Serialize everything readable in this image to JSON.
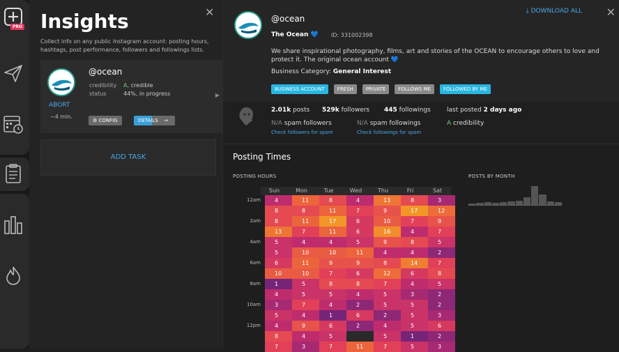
{
  "sidebar": {
    "pro_badge": "PRO",
    "icons": [
      "add-insights-icon",
      "send-icon",
      "schedule-calendar-icon",
      "tasks-clipboard-icon",
      "analytics-bars-icon",
      "trending-flame-icon"
    ]
  },
  "insights": {
    "title": "Insights",
    "description": "Collect info on any public Instagram account: posting hours, hashtags, post performance, followers and followings lists.",
    "task": {
      "username": "@ocean",
      "credibility_label": "credibility",
      "credibility_grade": "A,",
      "credibility_value": "credible",
      "status_label": "status",
      "status_value": "44%, in progress",
      "progress": 0.44,
      "abort": "ABORT",
      "eta": "~4 min.",
      "config_label": "CONFIG",
      "details_label": "DETAILS"
    },
    "add_task": "ADD TASK"
  },
  "profile": {
    "handle": "@ocean",
    "download_all": "DOWNLOAD ALL",
    "full_name": "The Ocean 💙",
    "id": "ID: 331002398",
    "bio": "We share inspirational photography, films, art and stories of the OCEAN to encourage others to love and protect it. The original ocean account 💙",
    "category_label": "Business Category:",
    "category_value": "General Interest",
    "tags": [
      {
        "label": "BUSINESS ACCOUNT",
        "color": "#29b6e0"
      },
      {
        "label": "FRESH",
        "color": "#8a8a8a"
      },
      {
        "label": "PRIVATE",
        "color": "#8a8a8a"
      },
      {
        "label": "FOLLOWS ME",
        "color": "#8a8a8a"
      },
      {
        "label": "FOLLOWED BY ME",
        "color": "#29b6e0"
      }
    ]
  },
  "stats": {
    "posts_value": "2.01k",
    "posts_label": "posts",
    "followers_value": "529k",
    "followers_label": "followers",
    "followings_value": "445",
    "followings_label": "followings",
    "last_posted_label": "last posted",
    "last_posted_value": "2 days ago",
    "spam_followers_value": "N/A",
    "spam_followers_label": "spam followers",
    "spam_followings_value": "N/A",
    "spam_followings_label": "spam followings",
    "credibility_grade": "A",
    "credibility_label": "credibility",
    "check_followers": "Check followers for spam",
    "check_followings": "Check followings for spam"
  },
  "posting_times": {
    "title": "Posting Times",
    "hours_title": "POSTING HOURS",
    "months_title": "POSTS BY MONTH",
    "days": [
      "Sun",
      "Mon",
      "Tue",
      "Wed",
      "Thu",
      "Fri",
      "Sat"
    ],
    "row_labels": [
      "12am",
      "",
      "2am",
      "",
      "4am",
      "",
      "6am",
      "",
      "8am",
      "",
      "10am",
      "",
      "12pm",
      "",
      ""
    ],
    "rows": [
      [
        4,
        11,
        8,
        4,
        13,
        8,
        3
      ],
      [
        8,
        8,
        11,
        7,
        9,
        17,
        12
      ],
      [
        8,
        11,
        17,
        6,
        10,
        7,
        9
      ],
      [
        13,
        7,
        11,
        6,
        16,
        4,
        7
      ],
      [
        5,
        4,
        4,
        5,
        9,
        8,
        5
      ],
      [
        5,
        10,
        10,
        11,
        4,
        4,
        2
      ],
      [
        6,
        11,
        9,
        9,
        8,
        14,
        7
      ],
      [
        10,
        10,
        7,
        6,
        12,
        6,
        8
      ],
      [
        1,
        5,
        8,
        8,
        7,
        4,
        5
      ],
      [
        4,
        5,
        5,
        4,
        5,
        3,
        2
      ],
      [
        3,
        7,
        4,
        2,
        5,
        5,
        2
      ],
      [
        5,
        4,
        1,
        6,
        2,
        5,
        3
      ],
      [
        4,
        9,
        6,
        2,
        4,
        5,
        6
      ],
      [
        8,
        4,
        5,
        null,
        5,
        1,
        2
      ],
      [
        7,
        3,
        7,
        11,
        7,
        5,
        3
      ]
    ],
    "month_levels": [
      0.08,
      0.1,
      0.12,
      0.1,
      0.14,
      0.16,
      0.2,
      0.35,
      0.9,
      0.5,
      0.16,
      0.14
    ]
  }
}
